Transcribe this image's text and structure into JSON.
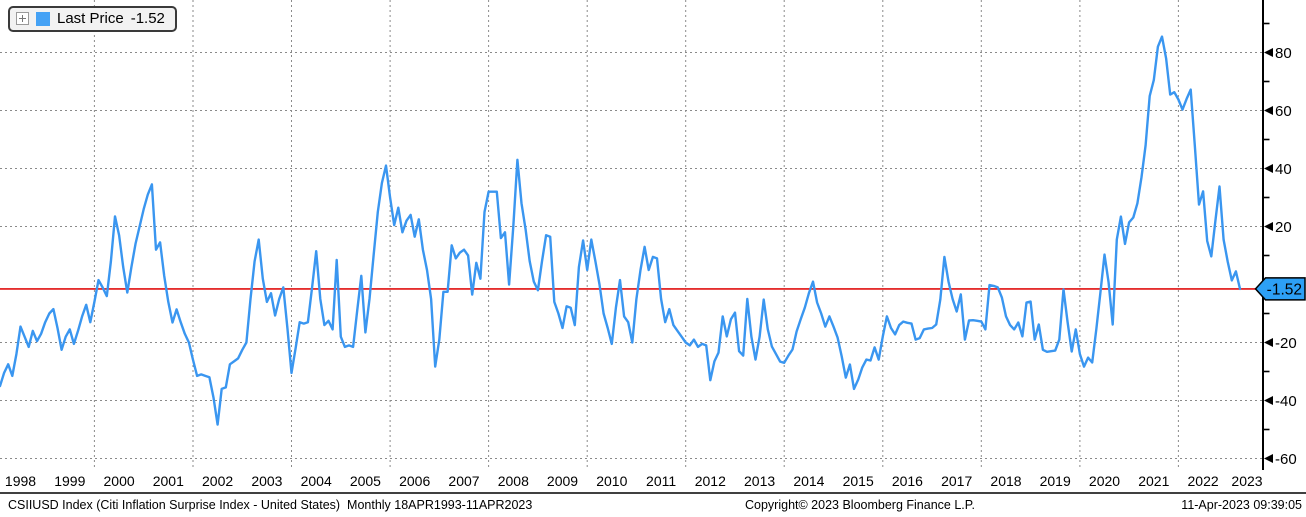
{
  "legend": {
    "label": "Last Price",
    "value": "-1.52"
  },
  "axis_badge": {
    "value": "-1.52"
  },
  "footer": {
    "left": "CSIIUSD Index (Citi Inflation Surprise Index - United States)  Monthly 18APR1993-11APR2023",
    "copyright": "Copyright© 2023 Bloomberg Finance L.P.",
    "datetime": "11-Apr-2023 09:39:05"
  },
  "colors": {
    "line": "#3a96f0",
    "swatch": "#45a2f5",
    "badge_fill": "#2da0f5",
    "last_price_line": "#e01010",
    "grid": "#8a8a8a",
    "axis": "#000000",
    "legend_bg": "#f2f2f2"
  },
  "chart_data": {
    "type": "line",
    "title": "CSIIUSD Index (Citi Inflation Surprise Index - United States)",
    "frequency": "monthly",
    "start": "1998-02",
    "end": "2023-04",
    "last_price": -1.52,
    "ylim": [
      -65,
      95
    ],
    "y_ticks": [
      80,
      60,
      40,
      20,
      -20,
      -40,
      -60
    ],
    "y_minor_ticks": [
      90,
      70,
      50,
      30,
      10,
      -10,
      -30,
      -50
    ],
    "x_labels": [
      1998,
      1999,
      2000,
      2001,
      2002,
      2003,
      2004,
      2005,
      2006,
      2007,
      2008,
      2009,
      2010,
      2011,
      2012,
      2013,
      2014,
      2015,
      2016,
      2017,
      2018,
      2019,
      2020,
      2021,
      2022,
      2023
    ],
    "x_gridline_years": [
      2000,
      2002,
      2004,
      2006,
      2008,
      2010,
      2012,
      2014,
      2016,
      2018,
      2020,
      2022
    ],
    "legend_position": "top-left",
    "grid": true,
    "series": [
      {
        "name": "Last Price",
        "values": [
          -35,
          -30.5,
          -27.5,
          -31.5,
          -24,
          -14.5,
          -18,
          -21.5,
          -16,
          -19.5,
          -17,
          -13,
          -10,
          -8.5,
          -15,
          -22.5,
          -18,
          -15.5,
          -20.5,
          -16,
          -11,
          -7,
          -13,
          -6,
          1.5,
          -1,
          -4,
          8,
          23.5,
          17,
          6,
          -2.8,
          6,
          14,
          20,
          26,
          31,
          34.5,
          12,
          14.5,
          3,
          -6,
          -13.1,
          -8.6,
          -13,
          -17,
          -20,
          -26,
          -31.5,
          -31,
          -31.5,
          -32,
          -39,
          -48.3,
          -36,
          -35.5,
          -27.5,
          -26.5,
          -25.5,
          -22.5,
          -20,
          -5,
          8,
          15.5,
          2,
          -6,
          -3,
          -10.7,
          -5,
          -1,
          -15,
          -30.5,
          -22,
          -13,
          -13.5,
          -13,
          -1,
          11.5,
          -5,
          -14,
          -12.5,
          -15.5,
          8.5,
          -18,
          -21.5,
          -21,
          -21.5,
          -9,
          3,
          -16.5,
          -5,
          10,
          25,
          35,
          41,
          30,
          20.5,
          26.5,
          18,
          22,
          24,
          16.5,
          22.5,
          12,
          5,
          -5,
          -28.3,
          -19,
          -2.5,
          -2.5,
          13.5,
          9,
          11,
          12,
          10,
          -3.5,
          7.5,
          2,
          25,
          32,
          32,
          32,
          16,
          18,
          0,
          20,
          43,
          28,
          19,
          8,
          1,
          -2,
          8,
          17,
          16.5,
          -6,
          -10,
          -15,
          -7.5,
          -8,
          -14,
          6,
          15.2,
          5,
          15.5,
          8,
          0,
          -10,
          -15,
          -20.5,
          -8,
          1.5,
          -11,
          -13,
          -20,
          -5,
          5,
          13,
          5,
          9.5,
          9,
          -5,
          -13,
          -8.5,
          -14,
          -16,
          -18,
          -20,
          -21,
          -19,
          -21.5,
          -20.5,
          -21,
          -33,
          -26.5,
          -23.5,
          -11,
          -17.9,
          -12,
          -9.7,
          -23,
          -24.5,
          -5,
          -18,
          -25.9,
          -18,
          -5.2,
          -15.5,
          -21.4,
          -24,
          -26.6,
          -27,
          -24.5,
          -22.4,
          -16.2,
          -12,
          -8,
          -3,
          1,
          -6.2,
          -10,
          -14.5,
          -11,
          -14.5,
          -18.3,
          -24.8,
          -32.1,
          -27.6,
          -36,
          -32.8,
          -28.6,
          -25.9,
          -26.2,
          -21.7,
          -25.9,
          -17.9,
          -11,
          -15,
          -17.2,
          -14,
          -12.8,
          -13.2,
          -13.5,
          -19,
          -18.5,
          -15.5,
          -15.2,
          -15,
          -13.8,
          -5.2,
          9.5,
          1,
          -5,
          -9.3,
          -3.4,
          -19,
          -12.4,
          -12.3,
          -12.5,
          -12.8,
          -15.5,
          -0.2,
          -0.5,
          -1,
          -4.5,
          -11,
          -14,
          -15.5,
          -13.1,
          -17.9,
          -6.2,
          -5.9,
          -19,
          -13.8,
          -22.5,
          -23.2,
          -23,
          -22.8,
          -19,
          -1.7,
          -13,
          -23.1,
          -15.5,
          -24,
          -28.3,
          -25.2,
          -26.9,
          -15.5,
          -2.8,
          10.3,
          0.7,
          -13.8,
          15.5,
          23.4,
          14,
          21.4,
          23.1,
          28,
          37,
          48,
          65,
          70.5,
          82,
          85.5,
          78,
          65.5,
          66.3,
          63.8,
          60.3,
          64,
          67.2,
          48,
          27.6,
          32.1,
          15,
          9.7,
          22,
          33.8,
          15.5,
          7.9,
          1.4,
          4.5,
          -1.52
        ]
      }
    ]
  }
}
